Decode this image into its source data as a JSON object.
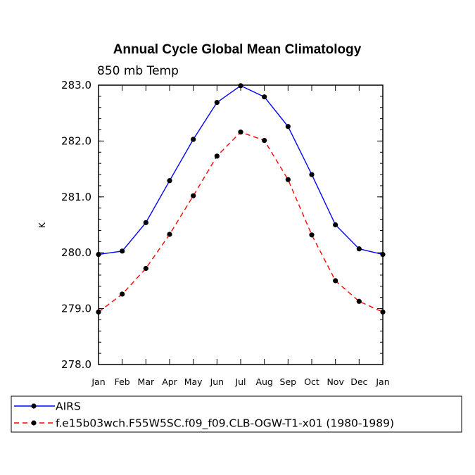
{
  "chart_data": {
    "type": "line",
    "title": "Annual Cycle Global Mean Climatology",
    "subtitle": "850 mb Temp",
    "xlabel": "",
    "ylabel": "K",
    "categories": [
      "Jan",
      "Feb",
      "Mar",
      "Apr",
      "May",
      "Jun",
      "Jul",
      "Aug",
      "Sep",
      "Oct",
      "Nov",
      "Dec",
      "Jan"
    ],
    "ylim": [
      278.0,
      283.0
    ],
    "yticks": [
      "278.0",
      "279.0",
      "280.0",
      "281.0",
      "282.0",
      "283.0"
    ],
    "grid": false,
    "legend_position": "bottom",
    "series": [
      {
        "name": "AIRS",
        "color": "#0000ff",
        "dash": "solid",
        "marker": "filled-circle",
        "values": [
          279.97,
          280.03,
          280.54,
          281.29,
          282.03,
          282.69,
          282.99,
          282.79,
          282.26,
          281.4,
          280.5,
          280.07,
          279.97
        ]
      },
      {
        "name": "f.e15b03wch.F55W5SC.f09_f09.CLB-OGW-T1-x01 (1980-1989)",
        "color": "#ff0000",
        "dash": "dashed",
        "marker": "filled-circle",
        "values": [
          278.94,
          279.26,
          279.72,
          280.33,
          281.02,
          281.73,
          282.16,
          282.01,
          281.31,
          280.32,
          279.5,
          279.13,
          278.94
        ]
      }
    ]
  }
}
